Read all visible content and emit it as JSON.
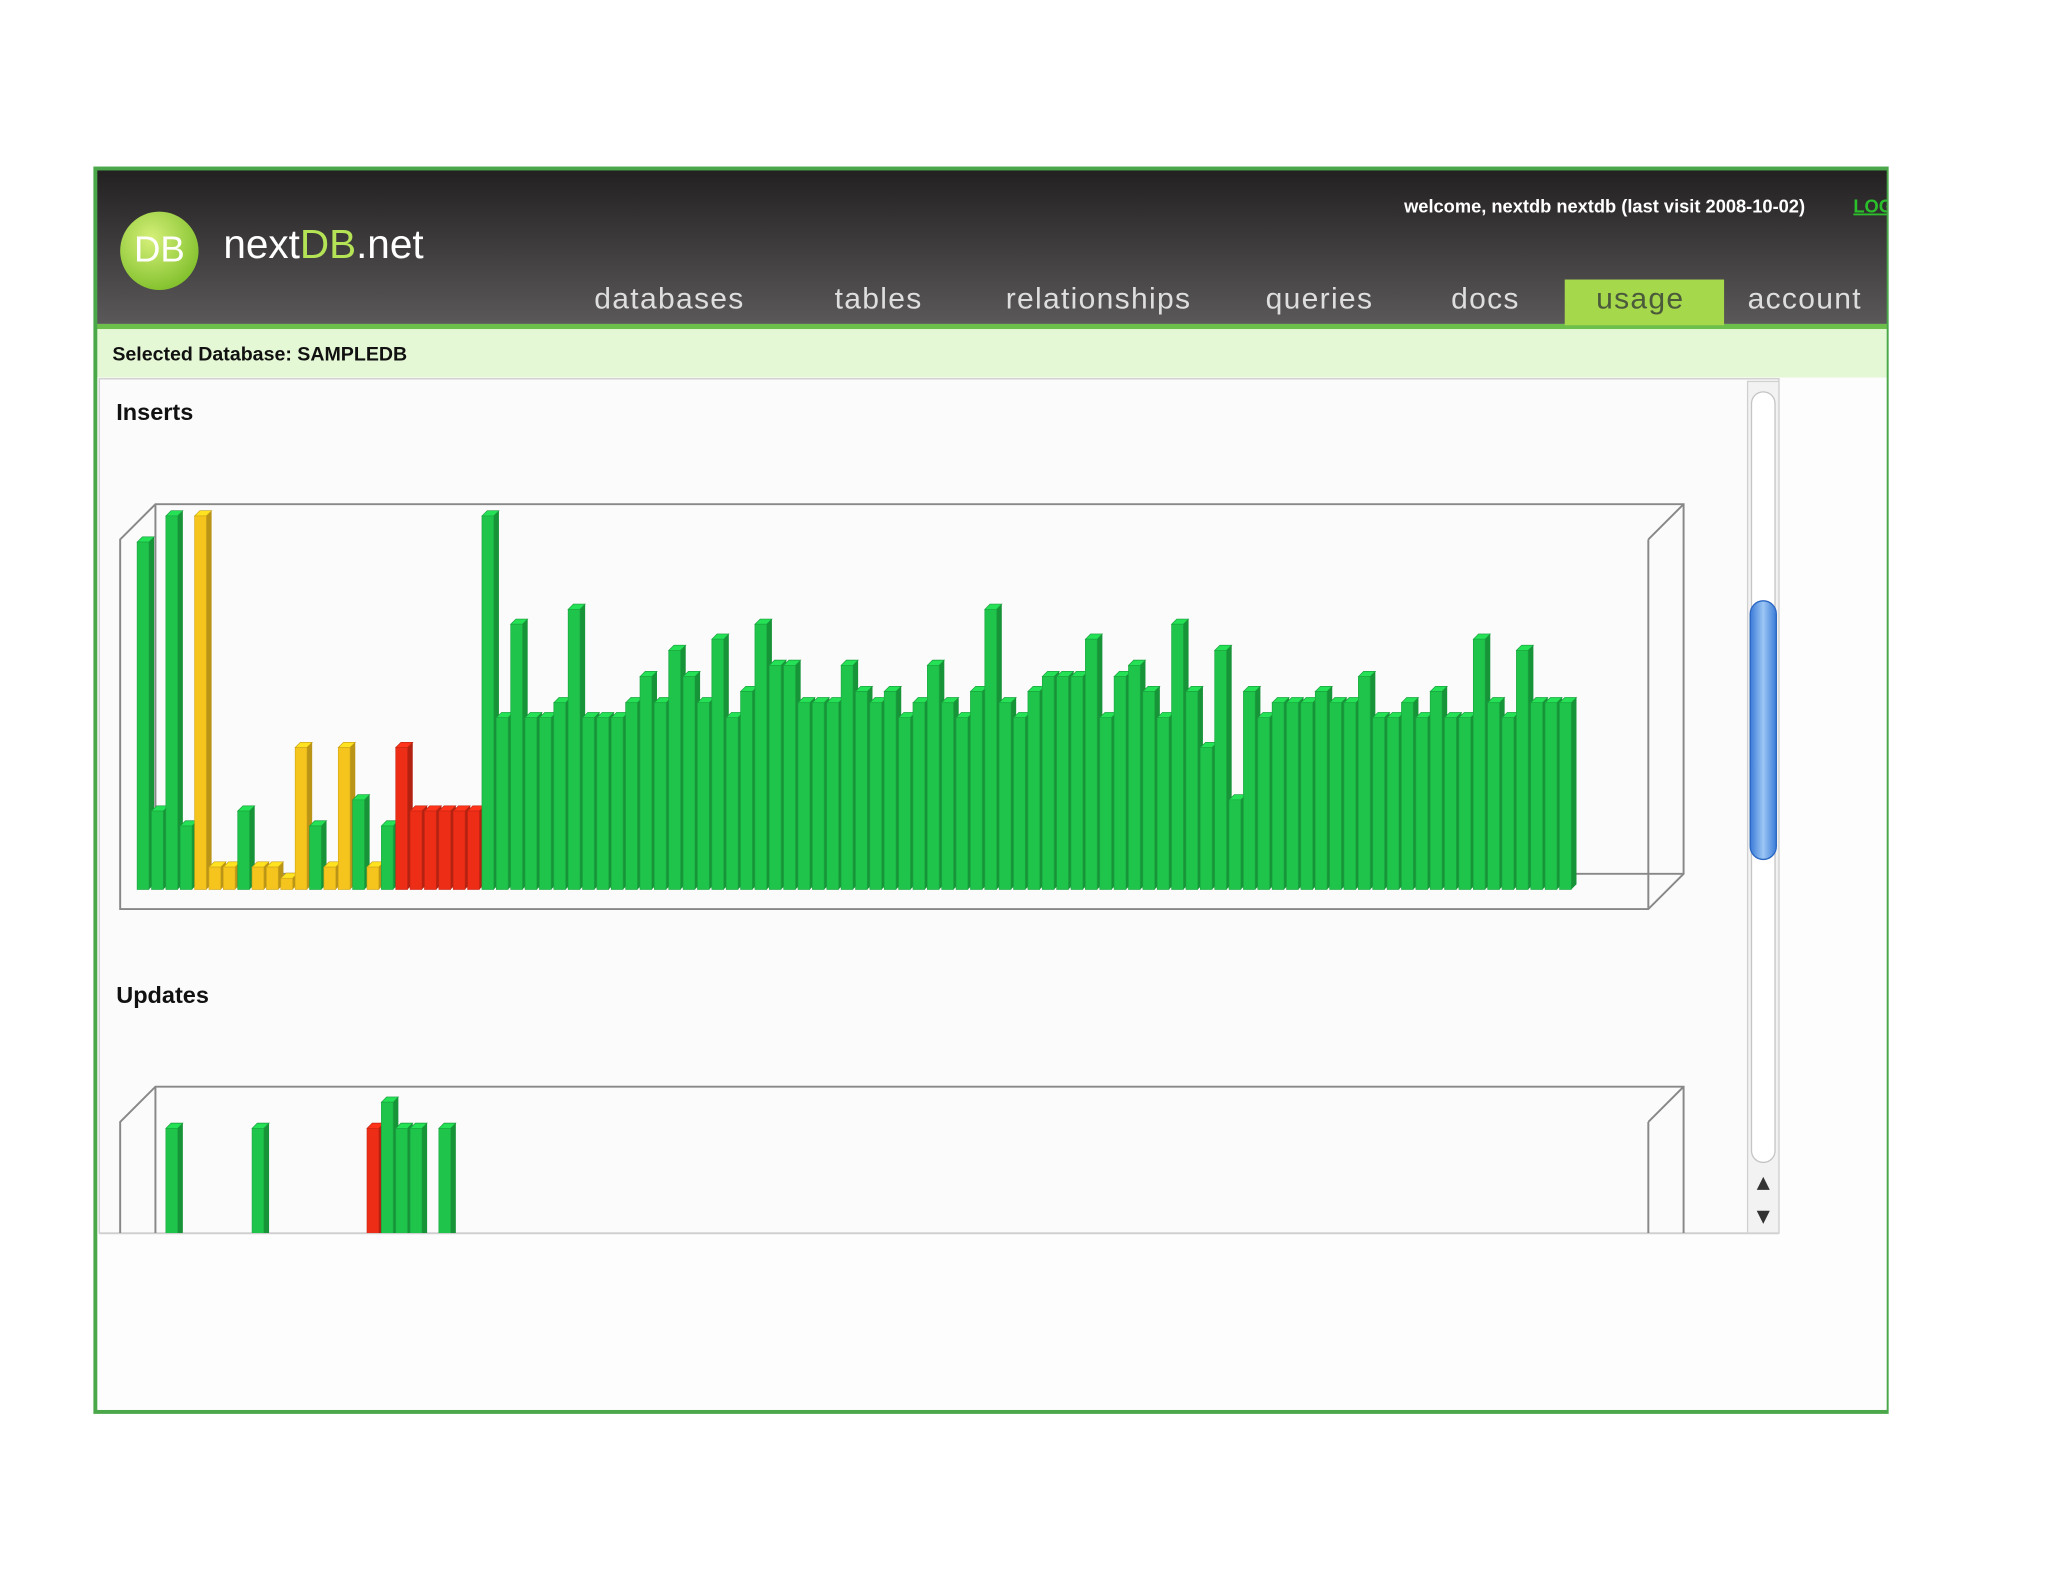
{
  "header": {
    "logo_badge": "DB",
    "logo_prefix": "next",
    "logo_db": "DB",
    "logo_suffix": ".net",
    "welcome": "welcome, nextdb nextdb (last visit 2008-10-02)",
    "logout": "LOGOUT"
  },
  "nav": {
    "tabs": [
      "databases",
      "tables",
      "relationships",
      "queries",
      "docs",
      "usage",
      "account"
    ],
    "active": 5
  },
  "selected_database": "Selected Database: SAMPLEDB",
  "charts": [
    {
      "type": "bar3d",
      "title": "Inserts",
      "values": [
        93,
        21,
        100,
        17,
        100,
        6,
        6,
        21,
        6,
        6,
        3,
        38,
        17,
        6,
        38,
        24,
        6,
        17,
        38,
        21,
        21,
        21,
        21,
        21,
        100,
        46,
        71,
        46,
        46,
        50,
        75,
        46,
        46,
        46,
        50,
        57,
        50,
        64,
        57,
        50,
        67,
        46,
        53,
        71,
        60,
        60,
        50,
        50,
        50,
        60,
        53,
        50,
        53,
        46,
        50,
        60,
        50,
        46,
        53,
        75,
        50,
        46,
        53,
        57,
        57,
        57,
        67,
        46,
        57,
        60,
        53,
        46,
        71,
        53,
        38,
        64,
        24,
        53,
        46,
        50,
        50,
        50,
        53,
        50,
        50,
        57,
        46,
        46,
        50,
        46,
        53,
        46,
        46,
        67,
        50,
        46,
        64,
        50,
        50,
        50
      ],
      "colors": [
        "#1fc44b",
        "#1fc44b",
        "#1fc44b",
        "#1fc44b",
        "#f6c51d",
        "#f6c51d",
        "#f6c51d",
        "#1fc44b",
        "#f6c51d",
        "#f6c51d",
        "#f6c51d",
        "#f6c51d",
        "#1fc44b",
        "#f6c51d",
        "#f6c51d",
        "#1fc44b",
        "#f6c51d",
        "#1fc44b",
        "#ee2d17",
        "#ee2d17",
        "#ee2d17",
        "#ee2d17",
        "#ee2d17",
        "#ee2d17",
        "#1fc44b",
        "#1fc44b",
        "#1fc44b",
        "#1fc44b",
        "#1fc44b",
        "#1fc44b",
        "#1fc44b",
        "#1fc44b",
        "#1fc44b",
        "#1fc44b",
        "#1fc44b",
        "#1fc44b",
        "#1fc44b",
        "#1fc44b",
        "#1fc44b",
        "#1fc44b",
        "#1fc44b",
        "#1fc44b",
        "#1fc44b",
        "#1fc44b",
        "#1fc44b",
        "#1fc44b",
        "#1fc44b",
        "#1fc44b",
        "#1fc44b",
        "#1fc44b",
        "#1fc44b",
        "#1fc44b",
        "#1fc44b",
        "#1fc44b",
        "#1fc44b",
        "#1fc44b",
        "#1fc44b",
        "#1fc44b",
        "#1fc44b",
        "#1fc44b",
        "#1fc44b",
        "#1fc44b",
        "#1fc44b",
        "#1fc44b",
        "#1fc44b",
        "#1fc44b",
        "#1fc44b",
        "#1fc44b",
        "#1fc44b",
        "#1fc44b",
        "#1fc44b",
        "#1fc44b",
        "#1fc44b",
        "#1fc44b",
        "#1fc44b",
        "#1fc44b",
        "#1fc44b",
        "#1fc44b",
        "#1fc44b",
        "#1fc44b",
        "#1fc44b",
        "#1fc44b",
        "#1fc44b",
        "#1fc44b",
        "#1fc44b",
        "#1fc44b",
        "#1fc44b",
        "#1fc44b",
        "#1fc44b",
        "#1fc44b",
        "#1fc44b",
        "#1fc44b",
        "#1fc44b",
        "#1fc44b",
        "#1fc44b",
        "#1fc44b",
        "#1fc44b",
        "#1fc44b",
        "#1fc44b",
        "#1fc44b"
      ]
    },
    {
      "type": "bar3d",
      "title": "Updates",
      "values": [
        0,
        0,
        92,
        0,
        0,
        0,
        0,
        0,
        92,
        0,
        0,
        0,
        0,
        0,
        0,
        0,
        92,
        99,
        92,
        92,
        0,
        92
      ],
      "colors": [
        "#1fc44b",
        "#1fc44b",
        "#1fc44b",
        "#1fc44b",
        "#1fc44b",
        "#1fc44b",
        "#1fc44b",
        "#1fc44b",
        "#1fc44b",
        "#1fc44b",
        "#1fc44b",
        "#1fc44b",
        "#1fc44b",
        "#1fc44b",
        "#1fc44b",
        "#1fc44b",
        "#ee2d17",
        "#1fc44b",
        "#1fc44b",
        "#1fc44b",
        "#1fc44b",
        "#1fc44b"
      ]
    }
  ]
}
